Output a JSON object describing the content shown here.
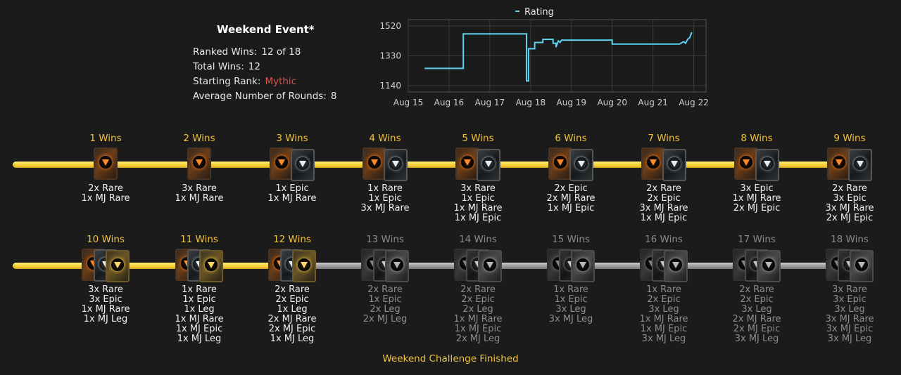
{
  "summary": {
    "title": "Weekend Event*",
    "ranked_wins_label": "Ranked Wins:",
    "ranked_wins_value": "12 of 18",
    "total_wins_label": "Total Wins:",
    "total_wins_value": "12",
    "starting_rank_label": "Starting Rank:",
    "starting_rank_value": "Mythic",
    "avg_rounds_label": "Average Number of Rounds:",
    "avg_rounds_value": "8"
  },
  "colors": {
    "gold": "#f0c33c",
    "rank": "#d9534f",
    "line": "#5fd2f0",
    "locked": "#8d8d8d"
  },
  "chart_data": {
    "type": "line",
    "series": [
      {
        "name": "Rating",
        "color": "#5fd2f0",
        "points": [
          [
            "Aug 15.4",
            1250
          ],
          [
            "Aug 16.35",
            1250
          ],
          [
            "Aug 16.35",
            1470
          ],
          [
            "Aug 17.9",
            1470
          ],
          [
            "Aug 17.9",
            1170
          ],
          [
            "Aug 17.95",
            1170
          ],
          [
            "Aug 17.95",
            1375
          ],
          [
            "Aug 18.1",
            1375
          ],
          [
            "Aug 18.1",
            1415
          ],
          [
            "Aug 18.3",
            1415
          ],
          [
            "Aug 18.3",
            1435
          ],
          [
            "Aug 18.55",
            1435
          ],
          [
            "Aug 18.55",
            1410
          ],
          [
            "Aug 18.62",
            1410
          ],
          [
            "Aug 18.62",
            1385
          ],
          [
            "Aug 18.68",
            1425
          ],
          [
            "Aug 18.72",
            1415
          ],
          [
            "Aug 18.76",
            1430
          ],
          [
            "Aug 20.0",
            1430
          ],
          [
            "Aug 20.0",
            1405
          ],
          [
            "Aug 21.65",
            1405
          ],
          [
            "Aug 21.75",
            1420
          ],
          [
            "Aug 21.8",
            1410
          ],
          [
            "Aug 21.85",
            1435
          ],
          [
            "Aug 21.9",
            1445
          ],
          [
            "Aug 21.95",
            1480
          ]
        ]
      }
    ],
    "x_tick_labels": [
      "Aug 15",
      "Aug 16",
      "Aug 17",
      "Aug 18",
      "Aug 19",
      "Aug 20",
      "Aug 21",
      "Aug 22"
    ],
    "xlim": [
      15,
      22.3
    ],
    "y_ticks": [
      1140,
      1330,
      1520
    ],
    "ylim": [
      1100,
      1560
    ],
    "grid": true,
    "legend": "top"
  },
  "tracks": [
    {
      "stops": [
        {
          "label": "1 Wins",
          "locked": false,
          "packs": [
            "rare"
          ],
          "rewards": [
            "2x Rare",
            "1x MJ Rare"
          ]
        },
        {
          "label": "2 Wins",
          "locked": false,
          "packs": [
            "rare"
          ],
          "rewards": [
            "3x Rare",
            "1x MJ Rare"
          ]
        },
        {
          "label": "3 Wins",
          "locked": false,
          "packs": [
            "rare",
            "epic"
          ],
          "rewards": [
            "1x Epic",
            "1x MJ Rare"
          ]
        },
        {
          "label": "4 Wins",
          "locked": false,
          "packs": [
            "rare",
            "epic"
          ],
          "rewards": [
            "1x Rare",
            "1x Epic",
            "3x MJ Rare"
          ]
        },
        {
          "label": "5 Wins",
          "locked": false,
          "packs": [
            "rare",
            "epic"
          ],
          "rewards": [
            "3x Rare",
            "1x Epic",
            "1x MJ Rare",
            "1x MJ Epic"
          ]
        },
        {
          "label": "6 Wins",
          "locked": false,
          "packs": [
            "rare",
            "epic"
          ],
          "rewards": [
            "2x Epic",
            "2x MJ Rare",
            "1x MJ Epic"
          ]
        },
        {
          "label": "7 Wins",
          "locked": false,
          "packs": [
            "rare",
            "epic"
          ],
          "rewards": [
            "2x Rare",
            "2x Epic",
            "3x MJ Rare",
            "1x MJ Epic"
          ]
        },
        {
          "label": "8 Wins",
          "locked": false,
          "packs": [
            "rare",
            "epic"
          ],
          "rewards": [
            "3x Epic",
            "1x MJ Rare",
            "2x MJ Epic"
          ]
        },
        {
          "label": "9 Wins",
          "locked": false,
          "packs": [
            "rare",
            "epic"
          ],
          "rewards": [
            "2x Rare",
            "3x Epic",
            "3x MJ Rare",
            "2x MJ Epic"
          ]
        }
      ]
    },
    {
      "stops": [
        {
          "label": "10 Wins",
          "locked": false,
          "packs": [
            "rare",
            "epic",
            "leg"
          ],
          "rewards": [
            "3x Rare",
            "3x Epic",
            "1x MJ Rare",
            "1x MJ Leg"
          ]
        },
        {
          "label": "11 Wins",
          "locked": false,
          "packs": [
            "rare",
            "epic",
            "leg"
          ],
          "rewards": [
            "1x Rare",
            "1x Epic",
            "1x Leg",
            "1x MJ Rare",
            "1x MJ Epic",
            "1x MJ Leg"
          ]
        },
        {
          "label": "12 Wins",
          "locked": false,
          "packs": [
            "rare",
            "epic",
            "leg"
          ],
          "rewards": [
            "2x Rare",
            "2x Epic",
            "1x Leg",
            "2x MJ Rare",
            "2x MJ Epic",
            "1x MJ Leg"
          ]
        },
        {
          "label": "13 Wins",
          "locked": true,
          "packs": [
            "rare",
            "epic",
            "leg"
          ],
          "rewards": [
            "2x Rare",
            "1x Epic",
            "2x Leg",
            "2x MJ Leg"
          ]
        },
        {
          "label": "14 Wins",
          "locked": true,
          "packs": [
            "rare",
            "epic",
            "leg"
          ],
          "rewards": [
            "2x Rare",
            "2x Epic",
            "2x Leg",
            "1x MJ Rare",
            "1x MJ Epic",
            "2x MJ Leg"
          ]
        },
        {
          "label": "15 Wins",
          "locked": true,
          "packs": [
            "rare",
            "epic",
            "leg"
          ],
          "rewards": [
            "1x Rare",
            "1x Epic",
            "3x Leg",
            "3x MJ Leg"
          ]
        },
        {
          "label": "16 Wins",
          "locked": true,
          "packs": [
            "rare",
            "epic",
            "leg"
          ],
          "rewards": [
            "1x Rare",
            "2x Epic",
            "3x Leg",
            "1x MJ Rare",
            "1x MJ Epic",
            "3x MJ Leg"
          ]
        },
        {
          "label": "17 Wins",
          "locked": true,
          "packs": [
            "rare",
            "epic",
            "leg"
          ],
          "rewards": [
            "2x Rare",
            "2x Epic",
            "3x Leg",
            "2x MJ Rare",
            "2x MJ Epic",
            "3x MJ Leg"
          ]
        },
        {
          "label": "18 Wins",
          "locked": true,
          "packs": [
            "rare",
            "epic",
            "leg"
          ],
          "rewards": [
            "3x Rare",
            "3x Epic",
            "3x Leg",
            "3x MJ Rare",
            "3x MJ Epic",
            "3x MJ Leg"
          ]
        }
      ]
    }
  ],
  "footer": "Weekend Challenge Finished"
}
